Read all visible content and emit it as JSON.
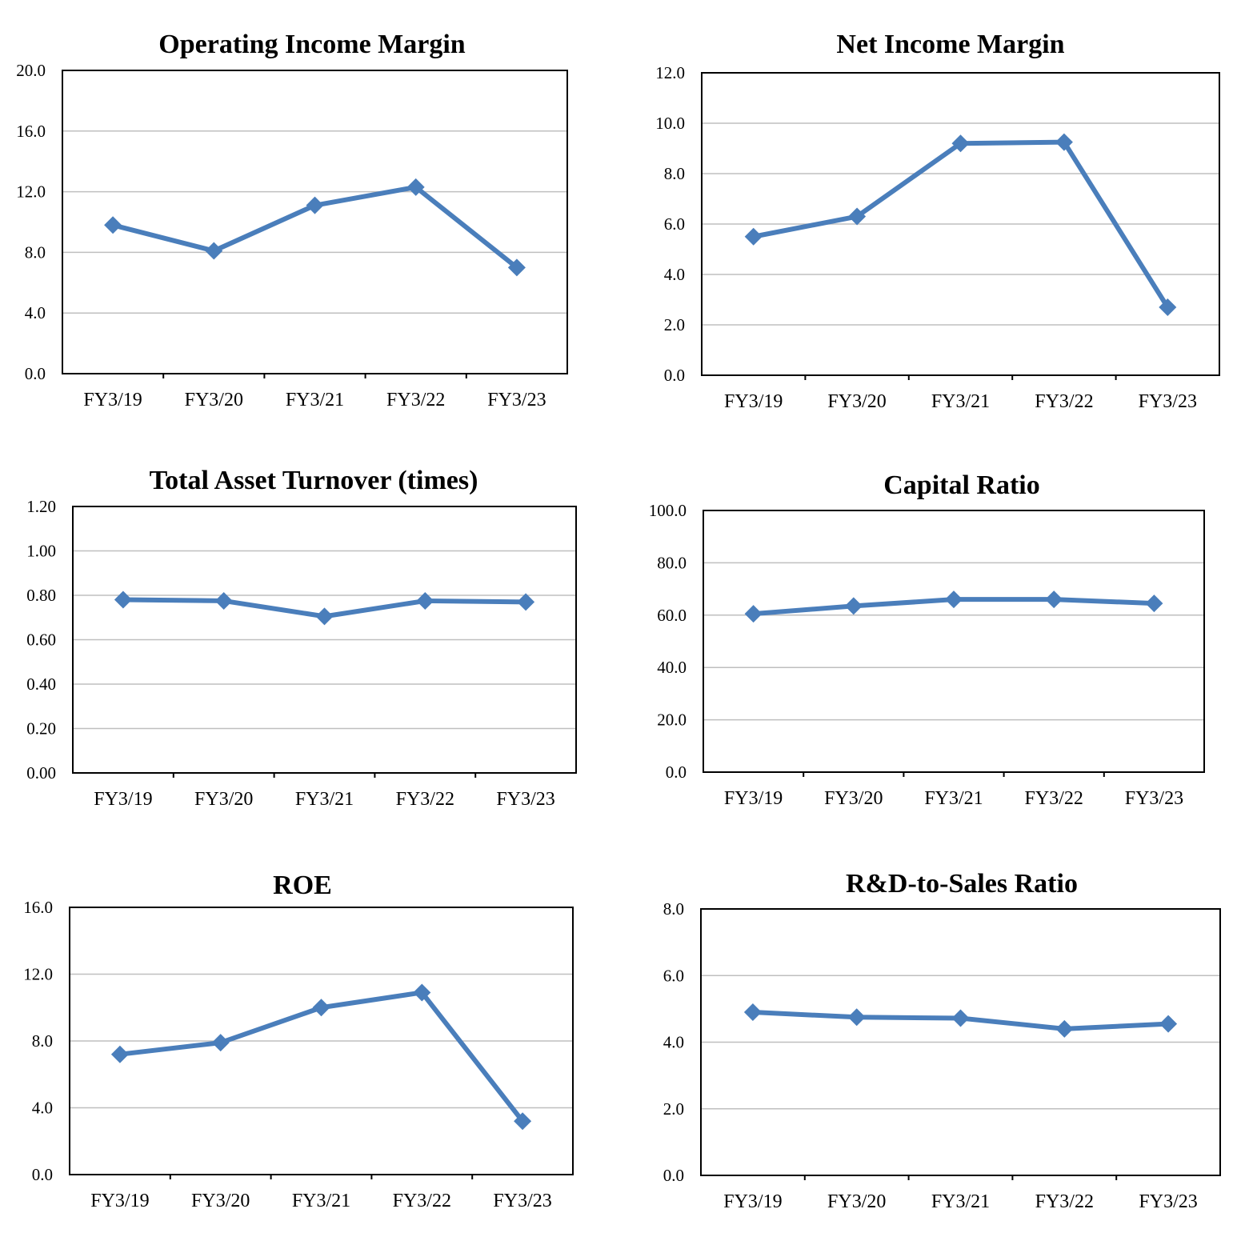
{
  "colors": {
    "series": "#4a7ebb",
    "grid": "#bfbfbf",
    "axis": "#000000"
  },
  "chart_data": [
    {
      "type": "line",
      "title": "Operating Income Margin",
      "categories": [
        "FY3/19",
        "FY3/20",
        "FY3/21",
        "FY3/22",
        "FY3/23"
      ],
      "values": [
        9.8,
        8.1,
        11.1,
        12.3,
        7.0
      ],
      "ylim": [
        0,
        20
      ],
      "yticks": [
        "0.0",
        "4.0",
        "8.0",
        "12.0",
        "16.0",
        "20.0"
      ],
      "grid": true,
      "marker": "diamond"
    },
    {
      "type": "line",
      "title": "Net Income Margin",
      "categories": [
        "FY3/19",
        "FY3/20",
        "FY3/21",
        "FY3/22",
        "FY3/23"
      ],
      "values": [
        5.5,
        6.3,
        9.2,
        9.25,
        2.7
      ],
      "ylim": [
        0,
        12
      ],
      "yticks": [
        "0.0",
        "2.0",
        "4.0",
        "6.0",
        "8.0",
        "10.0",
        "12.0"
      ],
      "grid": true,
      "marker": "diamond"
    },
    {
      "type": "line",
      "title": "Total Asset Turnover (times)",
      "categories": [
        "FY3/19",
        "FY3/20",
        "FY3/21",
        "FY3/22",
        "FY3/23"
      ],
      "values": [
        0.78,
        0.775,
        0.705,
        0.775,
        0.77
      ],
      "ylim": [
        0,
        1.2
      ],
      "yticks": [
        "0.00",
        "0.20",
        "0.40",
        "0.60",
        "0.80",
        "1.00",
        "1.20"
      ],
      "grid": true,
      "marker": "diamond"
    },
    {
      "type": "line",
      "title": "Capital Ratio",
      "categories": [
        "FY3/19",
        "FY3/20",
        "FY3/21",
        "FY3/22",
        "FY3/23"
      ],
      "values": [
        60.5,
        63.5,
        66.0,
        66.0,
        64.5
      ],
      "ylim": [
        0,
        100
      ],
      "yticks": [
        "0.0",
        "20.0",
        "40.0",
        "60.0",
        "80.0",
        "100.0"
      ],
      "grid": true,
      "marker": "diamond"
    },
    {
      "type": "line",
      "title": "ROE",
      "categories": [
        "FY3/19",
        "FY3/20",
        "FY3/21",
        "FY3/22",
        "FY3/23"
      ],
      "values": [
        7.2,
        7.9,
        10.0,
        10.9,
        3.2
      ],
      "ylim": [
        0,
        16
      ],
      "yticks": [
        "0.0",
        "4.0",
        "8.0",
        "12.0",
        "16.0"
      ],
      "grid": true,
      "marker": "diamond"
    },
    {
      "type": "line",
      "title": "R&D-to-Sales Ratio",
      "categories": [
        "FY3/19",
        "FY3/20",
        "FY3/21",
        "FY3/22",
        "FY3/23"
      ],
      "values": [
        4.9,
        4.75,
        4.72,
        4.4,
        4.55
      ],
      "ylim": [
        0,
        8
      ],
      "yticks": [
        "0.0",
        "2.0",
        "4.0",
        "6.0",
        "8.0"
      ],
      "grid": true,
      "marker": "diamond"
    }
  ]
}
